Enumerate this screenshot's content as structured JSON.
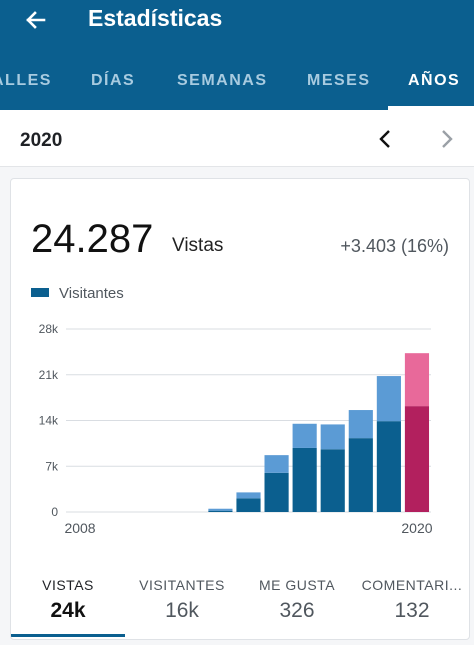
{
  "header": {
    "title": "Estadísticas",
    "tabs": [
      {
        "label": "ALLES",
        "active": false
      },
      {
        "label": "DÍAS",
        "active": false
      },
      {
        "label": "SEMANAS",
        "active": false
      },
      {
        "label": "MESES",
        "active": false
      },
      {
        "label": "AÑOS",
        "active": true
      }
    ]
  },
  "period": {
    "label": "2020"
  },
  "summary": {
    "value": "24.287",
    "label": "Vistas",
    "change": "+3.403 (16%)"
  },
  "legend": {
    "label": "Visitantes"
  },
  "chart_data": {
    "type": "bar",
    "stacked": true,
    "x_ticks": [
      "2008",
      "2020"
    ],
    "y_ticks": [
      "0",
      "7k",
      "14k",
      "21k",
      "28k"
    ],
    "ylim": [
      0,
      28000
    ],
    "grid": true,
    "categories": [
      "2008",
      "2009",
      "2010",
      "2011",
      "2012",
      "2013",
      "2014",
      "2015",
      "2016",
      "2017",
      "2018",
      "2019",
      "2020"
    ],
    "series": [
      {
        "name": "Visitantes",
        "values": [
          0,
          0,
          0,
          0,
          0,
          200,
          2100,
          6000,
          9800,
          9600,
          11300,
          13900,
          16200
        ]
      },
      {
        "values": [
          0,
          0,
          0,
          0,
          0,
          300,
          900,
          2700,
          3700,
          3800,
          4300,
          6900,
          8100
        ]
      }
    ],
    "colors": {
      "visitors": "#0b5f8f",
      "views": "#5b9bd5",
      "visitors_current": "#b2205e",
      "views_current": "#e8699a"
    }
  },
  "stats": [
    {
      "label": "VISTAS",
      "value": "24k",
      "active": true
    },
    {
      "label": "VISITANTES",
      "value": "16k",
      "active": false
    },
    {
      "label": "ME GUSTA",
      "value": "326",
      "active": false
    },
    {
      "label": "COMENTARI...",
      "value": "132",
      "active": false
    }
  ],
  "icons": {
    "back": "arrow-left-icon",
    "prev": "chevron-left-icon",
    "next": "chevron-right-icon"
  }
}
